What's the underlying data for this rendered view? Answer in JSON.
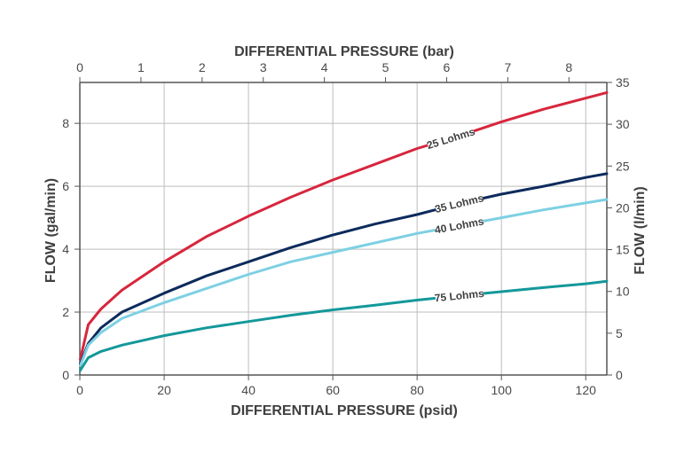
{
  "chart_data": {
    "type": "line",
    "grid": true,
    "x_bottom": {
      "label": "DIFFERENTIAL PRESSURE (psid)",
      "range": [
        0,
        125
      ],
      "ticks": [
        0,
        20,
        40,
        60,
        80,
        100,
        120
      ]
    },
    "x_top": {
      "label": "DIFFERENTIAL PRESSURE (bar)",
      "range": [
        0,
        8.62
      ],
      "ticks": [
        0,
        1,
        2,
        3,
        4,
        5,
        6,
        7,
        8
      ]
    },
    "y_left": {
      "label": "FLOW (gal/min)",
      "range": [
        0,
        9.3
      ],
      "ticks": [
        0,
        2,
        4,
        6,
        8
      ]
    },
    "y_right": {
      "label": "FLOW (l/min)",
      "range": [
        0,
        35
      ],
      "ticks": [
        0,
        5,
        10,
        15,
        20,
        25,
        30,
        35
      ]
    },
    "series": [
      {
        "name": "25 Lohms",
        "color": "#d7263d",
        "label_x": 88,
        "x": [
          0.1,
          2,
          5,
          10,
          20,
          30,
          40,
          50,
          60,
          70,
          80,
          90,
          100,
          110,
          120,
          125
        ],
        "y": [
          0.5,
          1.6,
          2.1,
          2.7,
          3.6,
          4.4,
          5.05,
          5.65,
          6.2,
          6.7,
          7.2,
          7.6,
          8.05,
          8.45,
          8.8,
          8.98
        ]
      },
      {
        "name": "35 Lohms",
        "color": "#0d2b5c",
        "label_x": 90,
        "x": [
          0.1,
          2,
          5,
          10,
          20,
          30,
          40,
          50,
          60,
          70,
          80,
          90,
          100,
          110,
          120,
          125
        ],
        "y": [
          0.35,
          1.0,
          1.5,
          2.0,
          2.6,
          3.15,
          3.6,
          4.05,
          4.45,
          4.8,
          5.1,
          5.45,
          5.75,
          6.0,
          6.28,
          6.4
        ]
      },
      {
        "name": "40 Lohms",
        "color": "#7dd0e3",
        "label_x": 90,
        "x": [
          0.1,
          2,
          5,
          10,
          20,
          30,
          40,
          50,
          60,
          70,
          80,
          90,
          100,
          110,
          120,
          125
        ],
        "y": [
          0.3,
          0.95,
          1.35,
          1.8,
          2.3,
          2.75,
          3.2,
          3.6,
          3.9,
          4.2,
          4.5,
          4.75,
          5.0,
          5.25,
          5.47,
          5.58
        ]
      },
      {
        "name": "75 Lohms",
        "color": "#14989a",
        "label_x": 90,
        "x": [
          0.1,
          2,
          5,
          10,
          20,
          30,
          40,
          50,
          60,
          70,
          80,
          90,
          100,
          110,
          120,
          125
        ],
        "y": [
          0.15,
          0.55,
          0.75,
          0.95,
          1.25,
          1.5,
          1.7,
          1.9,
          2.07,
          2.22,
          2.38,
          2.52,
          2.65,
          2.78,
          2.9,
          2.98
        ]
      }
    ]
  }
}
